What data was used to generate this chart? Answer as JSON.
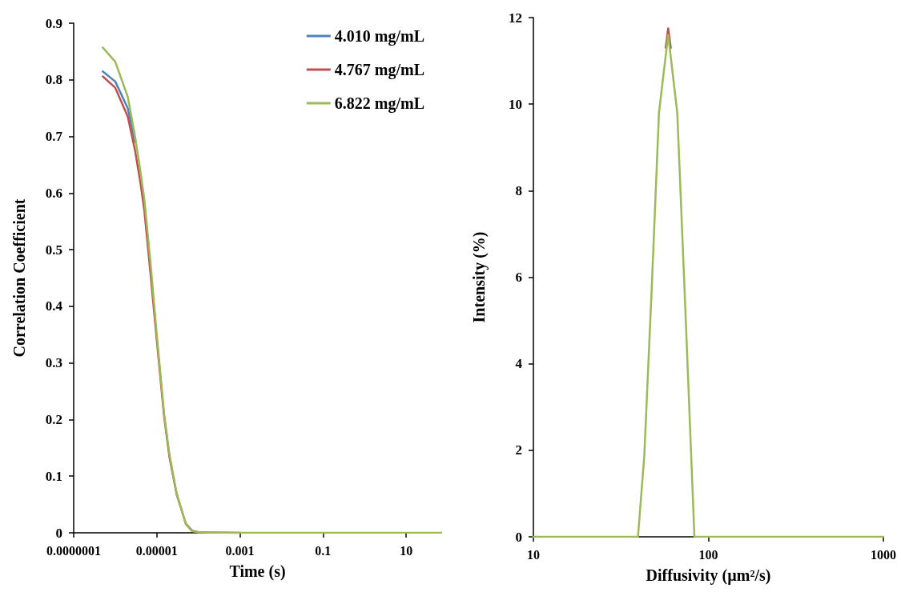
{
  "chart_data": [
    {
      "type": "line",
      "xlabel": "Time (s)",
      "ylabel": "Correlation Coefficient",
      "log": "x",
      "legend": "top right",
      "marker": "none",
      "line_style": "solid",
      "xlim": [
        1e-07,
        70
      ],
      "xticks": [
        {
          "value": 1e-07,
          "label": "0.0000001"
        },
        {
          "value": 1e-05,
          "label": "0.00001"
        },
        {
          "value": 0.001,
          "label": "0.001"
        },
        {
          "value": 0.1,
          "label": "0.1"
        },
        {
          "value": 10,
          "label": "10"
        }
      ],
      "ylim": [
        0,
        0.9
      ],
      "yticks": [
        0,
        0.1,
        0.2,
        0.3,
        0.4,
        0.5,
        0.6,
        0.7,
        0.8,
        0.9
      ],
      "x": [
        5e-07,
        1e-06,
        2e-06,
        3e-06,
        4e-06,
        5e-06,
        7e-06,
        1e-05,
        1.5e-05,
        2e-05,
        3e-05,
        5e-05,
        7e-05,
        0.0001,
        0.001,
        0.01,
        0.1,
        1,
        10,
        70
      ],
      "series": [
        {
          "name": "4.010 mg/mL",
          "color": "#4f81bd",
          "values": [
            0.815,
            0.797,
            0.75,
            0.69,
            null,
            null,
            null,
            null,
            null,
            null,
            null,
            null,
            null,
            null,
            null,
            null,
            null,
            null,
            null,
            null
          ]
        },
        {
          "name": "4.767 mg/mL",
          "color": "#c0504d",
          "values": [
            0.806,
            0.786,
            0.735,
            0.675,
            0.62,
            0.57,
            0.46,
            0.34,
            0.205,
            0.135,
            0.068,
            0.016,
            0.004,
            0.001,
            0,
            null,
            null,
            null,
            null,
            null
          ]
        },
        {
          "name": "6.822 mg/mL",
          "color": "#9bbb59",
          "values": [
            0.857,
            0.832,
            0.77,
            0.7,
            0.64,
            0.59,
            0.48,
            0.35,
            0.21,
            0.14,
            0.07,
            0.015,
            0.003,
            0.001,
            0,
            0,
            0,
            0,
            0,
            0
          ]
        }
      ]
    },
    {
      "type": "line",
      "xlabel": "Diffusivity (µm²/s)",
      "ylabel": "Intensity (%)",
      "log": "x",
      "marker": "none",
      "line_style": "solid",
      "xlim": [
        10,
        1000
      ],
      "xticks": [
        10,
        100,
        1000
      ],
      "ylim": [
        0,
        12
      ],
      "yticks": [
        0,
        2,
        4,
        6,
        8,
        10,
        12
      ],
      "x": [
        10,
        39.6,
        43,
        47.4,
        52.2,
        58.9,
        66.4,
        73.1,
        79.7,
        83.2,
        1000
      ],
      "series": [
        {
          "color": "#c0504d",
          "x": [
            57,
            58.9,
            61
          ],
          "values": [
            11.3,
            11.75,
            11.3
          ]
        },
        {
          "color": "#9bbb59",
          "values": [
            0,
            0,
            1.86,
            5.7,
            9.8,
            11.6,
            9.8,
            5.7,
            1.9,
            0,
            0
          ]
        }
      ]
    }
  ]
}
